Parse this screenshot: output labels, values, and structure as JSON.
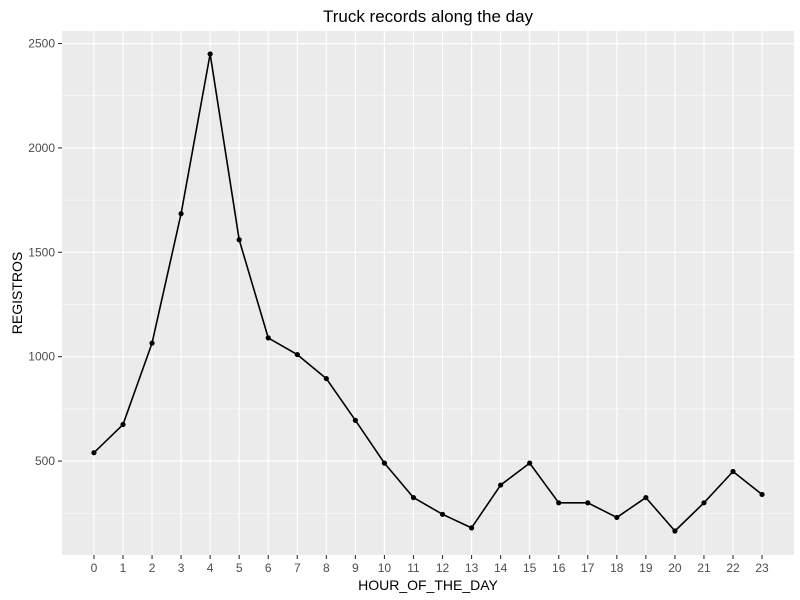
{
  "chart_data": {
    "type": "line",
    "title": "Truck records along the day",
    "xlabel": "HOUR_OF_THE_DAY",
    "ylabel": "REGISTROS",
    "x": [
      0,
      1,
      2,
      3,
      4,
      5,
      6,
      7,
      8,
      9,
      10,
      11,
      12,
      13,
      14,
      15,
      16,
      17,
      18,
      19,
      20,
      21,
      22,
      23
    ],
    "x_tick_labels": [
      "0",
      "1",
      "2",
      "3",
      "4",
      "5",
      "6",
      "7",
      "8",
      "9",
      "10",
      "11",
      "12",
      "13",
      "14",
      "15",
      "16",
      "17",
      "18",
      "19",
      "20",
      "21",
      "22",
      "23"
    ],
    "series": [
      {
        "values": [
          540,
          675,
          1065,
          1685,
          2450,
          1560,
          1090,
          1010,
          895,
          695,
          490,
          325,
          245,
          180,
          385,
          490,
          300,
          300,
          230,
          325,
          165,
          300,
          450,
          340
        ]
      }
    ],
    "xlim": [
      -1.1,
      24.1
    ],
    "ylim": [
      50,
      2560
    ],
    "y_ticks": [
      500,
      1000,
      1500,
      2000,
      2500
    ],
    "y_tick_labels": [
      "500",
      "1000",
      "1500",
      "2000",
      "2500"
    ],
    "grid": true,
    "legend": "none",
    "colors": {
      "panel_background": "#ebebeb",
      "grid": "#ffffff",
      "line": "#000000",
      "point": "#000000",
      "tick_label": "#4d4d4d",
      "text": "#000000"
    }
  }
}
